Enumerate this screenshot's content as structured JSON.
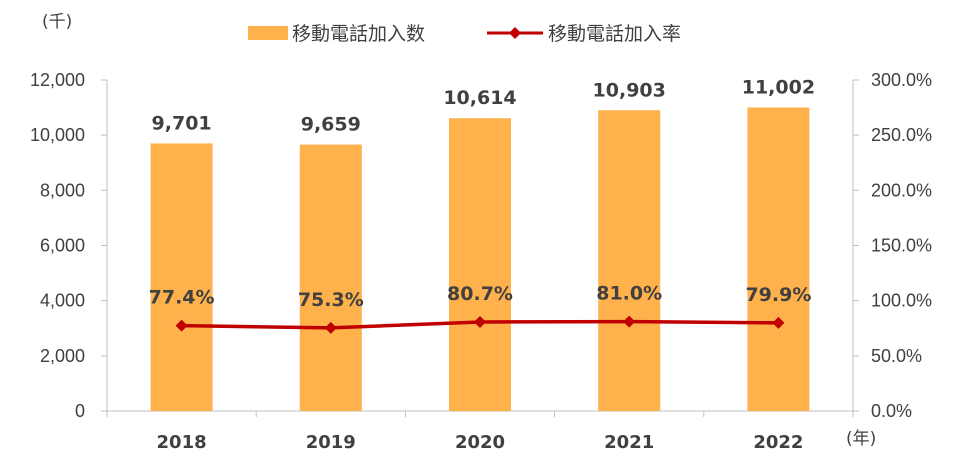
{
  "chart_data": {
    "type": "bar",
    "categories": [
      "2018",
      "2019",
      "2020",
      "2021",
      "2022"
    ],
    "left_unit": "(千)",
    "x_unit": "(年)",
    "series": [
      {
        "name": "移動電話加入数",
        "kind": "bar",
        "axis": "left",
        "color": "#FFB24C",
        "values": [
          9701,
          9659,
          10614,
          10903,
          11002
        ],
        "labels": [
          "9,701",
          "9,659",
          "10,614",
          "10,903",
          "11,002"
        ]
      },
      {
        "name": "移動電話加入率",
        "kind": "line",
        "axis": "right",
        "color": "#C00000",
        "values": [
          77.4,
          75.3,
          80.7,
          81.0,
          79.9
        ],
        "labels": [
          "77.4%",
          "75.3%",
          "80.7%",
          "81.0%",
          "79.9%"
        ]
      }
    ],
    "left_axis": {
      "ylim": [
        0,
        12000
      ],
      "ticks": [
        0,
        2000,
        4000,
        6000,
        8000,
        10000,
        12000
      ],
      "tick_labels": [
        "0",
        "2,000",
        "4,000",
        "6,000",
        "8,000",
        "10,000",
        "12,000"
      ]
    },
    "right_axis": {
      "ylim": [
        0,
        300
      ],
      "ticks": [
        0,
        50,
        100,
        150,
        200,
        250,
        300
      ],
      "tick_labels": [
        "0.0%",
        "50.0%",
        "100.0%",
        "150.0%",
        "200.0%",
        "250.0%",
        "300.0%"
      ]
    },
    "legend": "top-center",
    "grid": false
  }
}
